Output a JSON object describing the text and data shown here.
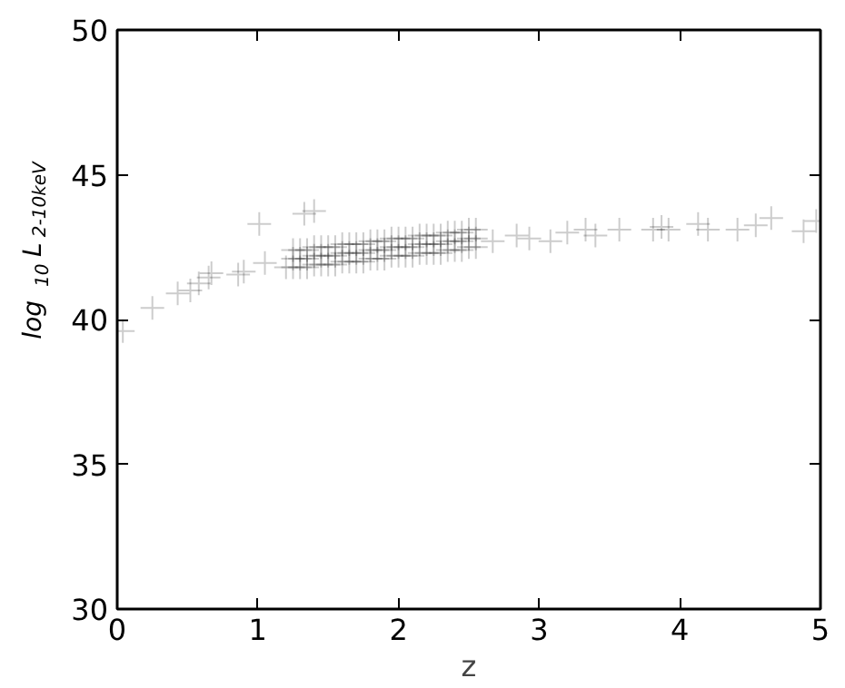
{
  "chart_data": {
    "type": "scatter",
    "xlabel": "z",
    "ylabel": "log$_{10}$L$_{2-10keV}$",
    "xlim": [
      0,
      5
    ],
    "ylim": [
      30,
      50
    ],
    "xticks": [
      0,
      1,
      2,
      3,
      4,
      5
    ],
    "yticks": [
      30,
      35,
      40,
      45,
      50
    ],
    "grid": false,
    "marker": "cross",
    "series": [
      {
        "color": "#000000",
        "x": [
          0.04,
          0.25,
          0.43,
          0.52,
          0.58,
          0.65,
          0.67,
          0.86,
          0.9,
          1.05,
          1.01,
          1.33,
          1.4,
          1.2,
          2.67,
          2.84,
          2.93,
          3.08,
          3.2,
          3.33,
          3.4,
          3.57,
          3.81,
          3.87,
          3.92,
          4.13,
          4.2,
          4.41,
          4.54,
          4.65,
          4.88,
          4.97,
          1.25,
          1.25,
          1.25,
          1.3,
          1.3,
          1.3,
          1.35,
          1.35,
          1.35,
          1.4,
          1.4,
          1.4,
          1.45,
          1.45,
          1.45,
          1.5,
          1.5,
          1.5,
          1.55,
          1.55,
          1.55,
          1.6,
          1.6,
          1.6,
          1.65,
          1.65,
          1.65,
          1.7,
          1.7,
          1.7,
          1.75,
          1.75,
          1.75,
          1.8,
          1.8,
          1.8,
          1.85,
          1.85,
          1.85,
          1.9,
          1.9,
          1.9,
          1.95,
          1.95,
          1.95,
          2.0,
          2.0,
          2.0,
          2.05,
          2.05,
          2.05,
          2.1,
          2.1,
          2.1,
          2.15,
          2.15,
          2.15,
          2.2,
          2.2,
          2.2,
          2.25,
          2.25,
          2.25,
          2.3,
          2.3,
          2.3,
          2.35,
          2.35,
          2.35,
          2.4,
          2.4,
          2.4,
          2.45,
          2.45,
          2.45,
          2.5,
          2.5,
          2.5,
          2.55,
          2.55,
          2.55
        ],
        "values": [
          39.6,
          40.4,
          40.9,
          41.0,
          41.25,
          41.45,
          41.6,
          41.55,
          41.65,
          41.95,
          43.3,
          43.65,
          43.75,
          41.8,
          42.7,
          42.9,
          42.8,
          42.7,
          43.0,
          43.1,
          42.9,
          43.1,
          43.1,
          43.2,
          43.1,
          43.3,
          43.1,
          43.1,
          43.25,
          43.5,
          43.05,
          43.4,
          41.8,
          42.1,
          42.4,
          41.8,
          42.1,
          42.4,
          41.8,
          42.1,
          42.4,
          41.9,
          42.2,
          42.5,
          41.9,
          42.2,
          42.5,
          41.9,
          42.2,
          42.5,
          41.9,
          42.2,
          42.5,
          42.0,
          42.3,
          42.6,
          42.0,
          42.3,
          42.6,
          42.0,
          42.3,
          42.6,
          42.0,
          42.3,
          42.6,
          42.1,
          42.4,
          42.7,
          42.1,
          42.4,
          42.7,
          42.1,
          42.4,
          42.7,
          42.2,
          42.5,
          42.8,
          42.2,
          42.5,
          42.8,
          42.2,
          42.5,
          42.8,
          42.2,
          42.5,
          42.8,
          42.3,
          42.6,
          42.9,
          42.3,
          42.6,
          42.9,
          42.3,
          42.6,
          42.9,
          42.3,
          42.6,
          42.9,
          42.4,
          42.7,
          43.0,
          42.4,
          42.7,
          43.0,
          42.4,
          42.7,
          43.0,
          42.5,
          42.8,
          43.1,
          42.5,
          42.8,
          43.1
        ]
      }
    ]
  }
}
